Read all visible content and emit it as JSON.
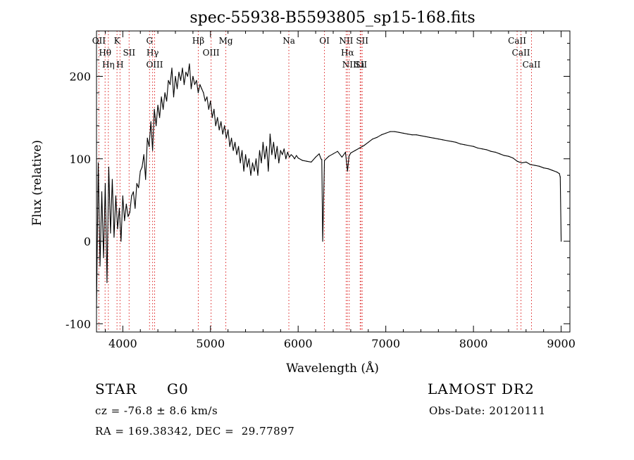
{
  "chart_data": {
    "type": "line",
    "title": "spec-55938-B5593805_sp15-168.fits",
    "xlabel": "Wavelength (Å)",
    "ylabel": "Flux (relative)",
    "xlim": [
      3700,
      9100
    ],
    "ylim": [
      -110,
      255
    ],
    "x_ticks": [
      4000,
      5000,
      6000,
      7000,
      8000,
      9000
    ],
    "y_ticks": [
      -100,
      0,
      100,
      200
    ],
    "grid": false,
    "series": [
      {
        "color": "#000000",
        "x": [
          3700,
          3720,
          3740,
          3760,
          3780,
          3800,
          3820,
          3840,
          3860,
          3880,
          3900,
          3920,
          3940,
          3960,
          3980,
          4000,
          4020,
          4040,
          4060,
          4080,
          4100,
          4120,
          4140,
          4160,
          4180,
          4200,
          4220,
          4240,
          4260,
          4280,
          4300,
          4320,
          4340,
          4360,
          4380,
          4400,
          4420,
          4440,
          4460,
          4480,
          4500,
          4520,
          4540,
          4560,
          4580,
          4600,
          4620,
          4640,
          4660,
          4680,
          4700,
          4720,
          4740,
          4760,
          4780,
          4800,
          4820,
          4840,
          4860,
          4880,
          4900,
          4920,
          4940,
          4960,
          4980,
          5000,
          5020,
          5040,
          5060,
          5080,
          5100,
          5120,
          5140,
          5160,
          5180,
          5200,
          5220,
          5240,
          5260,
          5280,
          5300,
          5320,
          5340,
          5360,
          5380,
          5400,
          5420,
          5440,
          5460,
          5480,
          5500,
          5520,
          5540,
          5560,
          5580,
          5600,
          5620,
          5640,
          5660,
          5680,
          5700,
          5720,
          5740,
          5760,
          5780,
          5800,
          5820,
          5840,
          5860,
          5880,
          5900,
          5920,
          5940,
          5960,
          5980,
          6000,
          6050,
          6100,
          6150,
          6200,
          6240,
          6260,
          6270,
          6280,
          6300,
          6350,
          6400,
          6450,
          6500,
          6540,
          6563,
          6580,
          6600,
          6650,
          6700,
          6750,
          6800,
          6850,
          6900,
          6950,
          7000,
          7050,
          7100,
          7150,
          7200,
          7250,
          7300,
          7350,
          7400,
          7450,
          7500,
          7550,
          7600,
          7650,
          7700,
          7750,
          7800,
          7850,
          7900,
          7950,
          8000,
          8050,
          8100,
          8150,
          8200,
          8250,
          8300,
          8350,
          8400,
          8450,
          8500,
          8550,
          8600,
          8650,
          8700,
          8750,
          8800,
          8850,
          8900,
          8950,
          8980,
          8990,
          9000
        ],
        "values": [
          -80,
          95,
          -30,
          60,
          -20,
          70,
          -50,
          90,
          10,
          75,
          5,
          55,
          15,
          40,
          0,
          55,
          25,
          45,
          30,
          35,
          55,
          60,
          40,
          70,
          65,
          85,
          90,
          105,
          75,
          125,
          115,
          145,
          110,
          160,
          140,
          165,
          150,
          175,
          160,
          180,
          170,
          195,
          190,
          210,
          175,
          200,
          185,
          205,
          195,
          210,
          190,
          205,
          200,
          215,
          185,
          200,
          190,
          195,
          180,
          190,
          185,
          180,
          170,
          175,
          160,
          170,
          150,
          160,
          140,
          150,
          135,
          145,
          130,
          140,
          125,
          135,
          115,
          125,
          110,
          120,
          105,
          115,
          95,
          110,
          85,
          105,
          90,
          100,
          80,
          95,
          85,
          100,
          80,
          110,
          95,
          120,
          100,
          115,
          85,
          130,
          105,
          120,
          100,
          115,
          95,
          110,
          105,
          112,
          100,
          108,
          102,
          105,
          103,
          100,
          104,
          101,
          98,
          97,
          96,
          102,
          106,
          100,
          99,
          0,
          98,
          103,
          106,
          109,
          102,
          108,
          85,
          103,
          107,
          110,
          113,
          116,
          120,
          124,
          126,
          129,
          131,
          133,
          133,
          132,
          131,
          130,
          129,
          129,
          128,
          127,
          126,
          125,
          124,
          123,
          122,
          121,
          120,
          118,
          117,
          116,
          115,
          113,
          112,
          111,
          109,
          108,
          106,
          104,
          103,
          101,
          97,
          95,
          96,
          93,
          92,
          91,
          89,
          88,
          86,
          84,
          82,
          78,
          0
        ]
      }
    ],
    "line_marks": [
      {
        "label": "OII",
        "wavelength": 3727
      },
      {
        "label": "Hθ",
        "wavelength": 3798
      },
      {
        "label": "Hη",
        "wavelength": 3835
      },
      {
        "label": "K",
        "wavelength": 3934
      },
      {
        "label": "H",
        "wavelength": 3968
      },
      {
        "label": "SII",
        "wavelength": 4072
      },
      {
        "label": "G",
        "wavelength": 4305
      },
      {
        "label": "Hγ",
        "wavelength": 4340
      },
      {
        "label": "OIII",
        "wavelength": 4363
      },
      {
        "label": "Hβ",
        "wavelength": 4861
      },
      {
        "label": "OIII",
        "wavelength": 5007
      },
      {
        "label": "Mg",
        "wavelength": 5175
      },
      {
        "label": "Na",
        "wavelength": 5894
      },
      {
        "label": "OI",
        "wavelength": 6300
      },
      {
        "label": "NII",
        "wavelength": 6548
      },
      {
        "label": "Hα",
        "wavelength": 6563
      },
      {
        "label": "NII",
        "wavelength": 6583
      },
      {
        "label": "Li",
        "wavelength": 6708
      },
      {
        "label": "SII",
        "wavelength": 6716
      },
      {
        "label": "SII",
        "wavelength": 6731
      },
      {
        "label": "CaII",
        "wavelength": 8498
      },
      {
        "label": "CaII",
        "wavelength": 8542
      },
      {
        "label": "CaII",
        "wavelength": 8662
      }
    ]
  },
  "annotations": {
    "object_class": "STAR",
    "subclass": "G0",
    "survey": "LAMOST DR2",
    "redshift": "cz = -76.8 ± 8.6 km/s",
    "obs_date": "Obs-Date: 20120111",
    "coords": "RA = 169.38342, DEC =  29.77897"
  }
}
